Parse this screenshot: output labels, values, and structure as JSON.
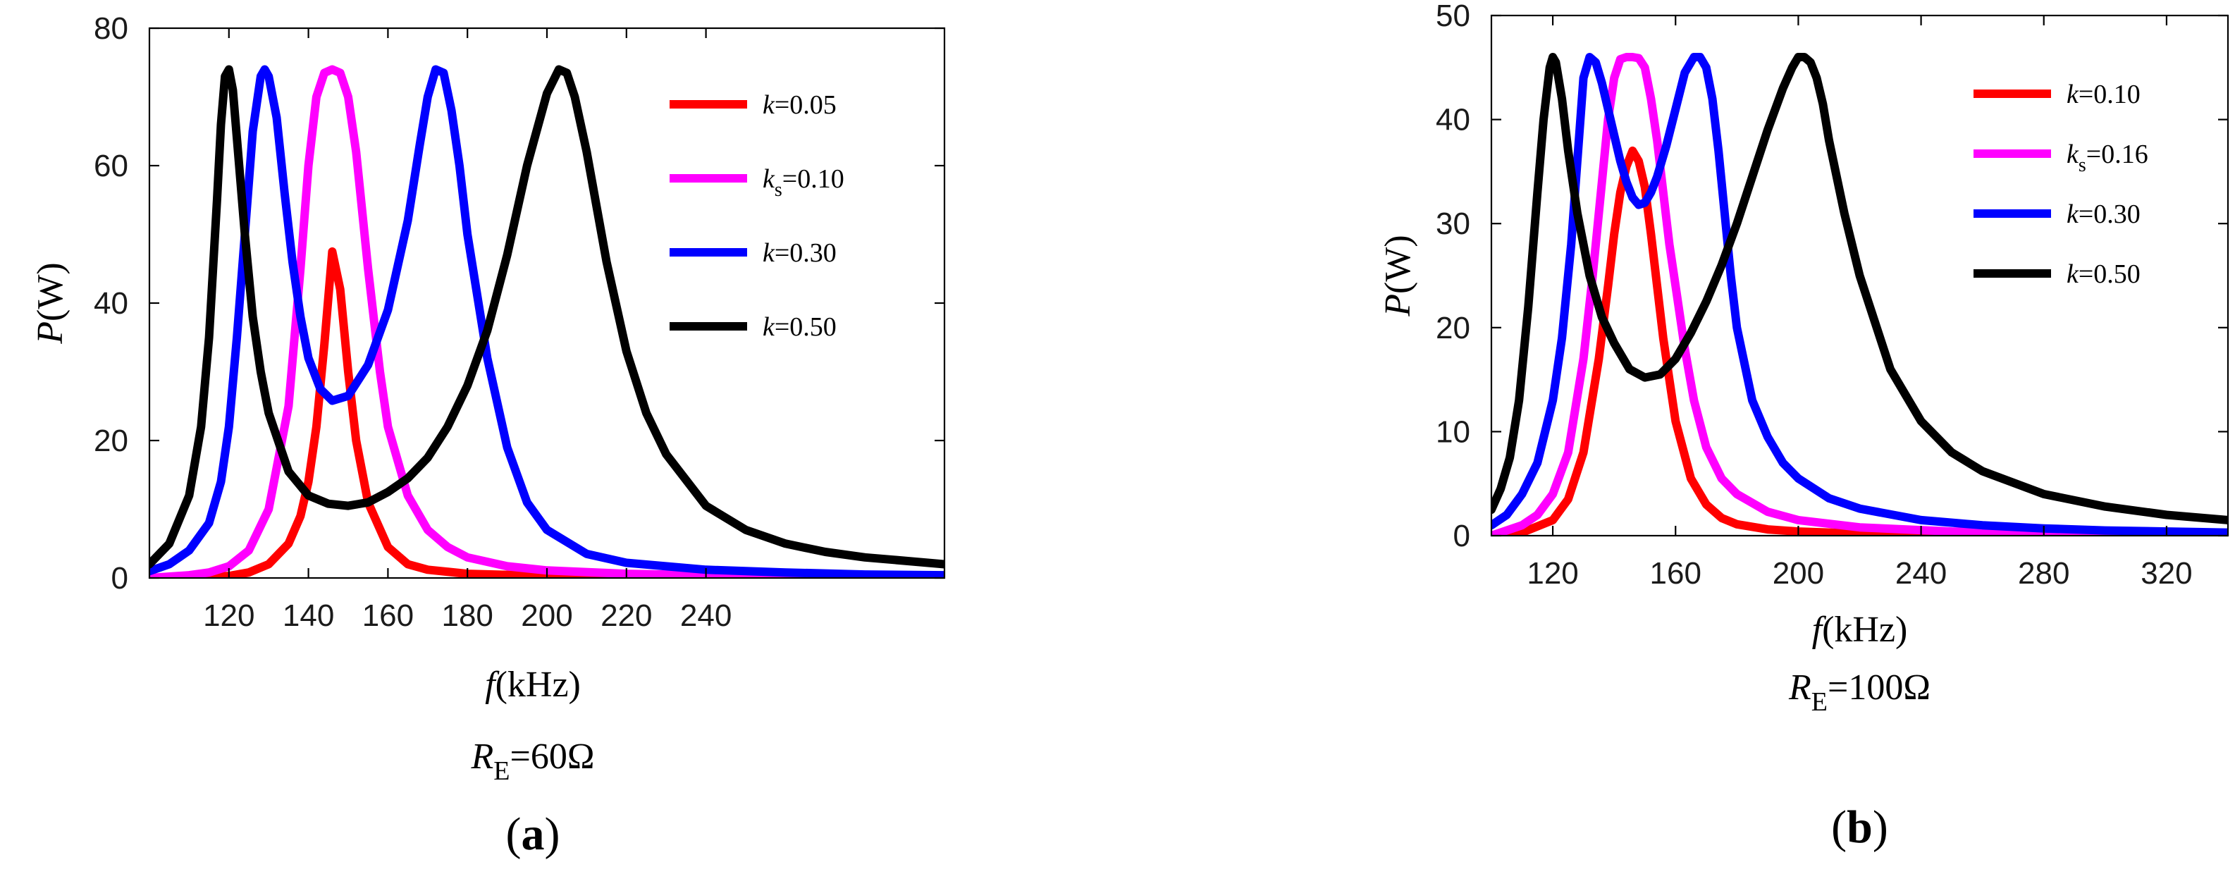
{
  "chart_data": [
    {
      "type": "line",
      "panel": "a",
      "xlabel": "f(kHz)",
      "ylabel": "P(W)",
      "condition": "R_E=60Ω",
      "xlim": [
        100,
        300
      ],
      "ylim": [
        0,
        80
      ],
      "xticks": [
        120,
        140,
        160,
        180,
        200,
        220,
        240
      ],
      "yticks": [
        0,
        20,
        40,
        60,
        80
      ],
      "legend_position": "top-right",
      "series": [
        {
          "name": "k=0.05",
          "symbol": "k",
          "sub": "",
          "value": "=0.05",
          "color": "#ff0000",
          "x": [
            100,
            110,
            120,
            125,
            130,
            135,
            138,
            140,
            142,
            144,
            146,
            148,
            150,
            152,
            155,
            160,
            165,
            170,
            180,
            200,
            250,
            300
          ],
          "y": [
            0,
            0.05,
            0.3,
            0.8,
            2,
            5,
            9,
            14,
            22,
            34,
            47.5,
            42,
            30,
            20,
            11,
            4.5,
            2,
            1.2,
            0.6,
            0.3,
            0.1,
            0.05
          ]
        },
        {
          "name": "ks=0.10",
          "symbol": "k",
          "sub": "s",
          "value": "=0.10",
          "color": "#ff00ff",
          "x": [
            100,
            110,
            115,
            120,
            125,
            130,
            135,
            138,
            140,
            142,
            144,
            146,
            148,
            150,
            152,
            155,
            158,
            160,
            165,
            170,
            175,
            180,
            190,
            200,
            220,
            250,
            300
          ],
          "y": [
            0,
            0.4,
            0.8,
            1.7,
            4,
            10,
            25,
            45,
            60,
            70,
            73.5,
            74,
            73.5,
            70,
            62,
            45,
            30,
            22,
            12,
            7,
            4.5,
            3,
            1.7,
            1.1,
            0.6,
            0.3,
            0.15
          ]
        },
        {
          "name": "k=0.30",
          "symbol": "k",
          "sub": "",
          "value": "=0.30",
          "color": "#0000ff",
          "x": [
            100,
            105,
            110,
            115,
            118,
            120,
            122,
            124,
            126,
            128,
            129,
            130,
            132,
            134,
            136,
            138,
            140,
            143,
            146,
            150,
            155,
            160,
            165,
            168,
            170,
            172,
            174,
            176,
            178,
            180,
            185,
            190,
            195,
            200,
            210,
            220,
            240,
            260,
            280,
            300
          ],
          "y": [
            1,
            2,
            4,
            8,
            14,
            22,
            35,
            50,
            65,
            73,
            74,
            73,
            67,
            56,
            46,
            38,
            32,
            27.5,
            25.8,
            26.5,
            31,
            39,
            52,
            63,
            70,
            74,
            73.5,
            68,
            60,
            50,
            32,
            19,
            11,
            7,
            3.5,
            2.2,
            1.2,
            0.8,
            0.5,
            0.4
          ]
        },
        {
          "name": "k=0.50",
          "symbol": "k",
          "sub": "",
          "value": "=0.50",
          "color": "#000000",
          "x": [
            100,
            105,
            110,
            113,
            115,
            117,
            118,
            119,
            120,
            121,
            122,
            124,
            126,
            128,
            130,
            135,
            140,
            145,
            150,
            155,
            160,
            165,
            170,
            175,
            180,
            185,
            190,
            195,
            200,
            203,
            205,
            207,
            210,
            215,
            220,
            225,
            230,
            240,
            250,
            260,
            270,
            280,
            290,
            300
          ],
          "y": [
            2,
            5,
            12,
            22,
            35,
            55,
            66,
            73,
            74,
            71,
            64,
            50,
            38,
            30,
            24,
            15.5,
            12,
            10.8,
            10.5,
            11,
            12.5,
            14.5,
            17.5,
            22,
            28,
            36,
            47,
            60,
            70.5,
            74,
            73.5,
            70,
            62,
            46,
            33,
            24,
            18,
            10.5,
            7,
            5,
            3.8,
            3,
            2.5,
            2
          ]
        }
      ]
    },
    {
      "type": "line",
      "panel": "b",
      "xlabel": "f(kHz)",
      "ylabel": "P(W)",
      "condition": "R_E=100Ω",
      "xlim": [
        100,
        340
      ],
      "ylim": [
        0,
        50
      ],
      "xticks": [
        120,
        160,
        200,
        240,
        280,
        320
      ],
      "yticks": [
        0,
        10,
        20,
        30,
        40,
        50
      ],
      "legend_position": "top-right",
      "series": [
        {
          "name": "k=0.10",
          "symbol": "k",
          "sub": "",
          "value": "=0.10",
          "color": "#ff0000",
          "x": [
            100,
            110,
            120,
            125,
            130,
            135,
            138,
            140,
            142,
            144,
            146,
            148,
            150,
            152,
            154,
            156,
            158,
            160,
            165,
            170,
            175,
            180,
            190,
            200,
            220,
            250,
            300,
            340
          ],
          "y": [
            0,
            0.3,
            1.5,
            3.5,
            8,
            17,
            24,
            29,
            33,
            35.5,
            37,
            36,
            33.5,
            29,
            24,
            19,
            15,
            11,
            5.5,
            3,
            1.7,
            1.1,
            0.6,
            0.4,
            0.2,
            0.1,
            0.05,
            0.03
          ]
        },
        {
          "name": "ks=0.16",
          "symbol": "k",
          "sub": "s",
          "value": "=0.16",
          "color": "#ff00ff",
          "x": [
            100,
            110,
            115,
            120,
            125,
            130,
            133,
            136,
            138,
            140,
            142,
            144,
            146,
            148,
            150,
            152,
            154,
            156,
            158,
            160,
            163,
            166,
            170,
            175,
            180,
            190,
            200,
            220,
            250,
            300,
            340
          ],
          "y": [
            0,
            1,
            2,
            4,
            8,
            17,
            25,
            34,
            40,
            44,
            45.8,
            46,
            46,
            45.9,
            45,
            42,
            38,
            33,
            28,
            24,
            18,
            13,
            8.5,
            5.5,
            4,
            2.3,
            1.5,
            0.8,
            0.4,
            0.2,
            0.1
          ]
        },
        {
          "name": "k=0.30",
          "symbol": "k",
          "sub": "",
          "value": "=0.30",
          "color": "#0000ff",
          "x": [
            100,
            105,
            110,
            115,
            120,
            123,
            126,
            128,
            130,
            132,
            134,
            136,
            138,
            140,
            142,
            144,
            146,
            148,
            150,
            152,
            154,
            157,
            160,
            163,
            166,
            168,
            170,
            172,
            174,
            176,
            178,
            180,
            185,
            190,
            195,
            200,
            210,
            220,
            240,
            260,
            280,
            300,
            340
          ],
          "y": [
            1,
            2,
            4,
            7,
            13,
            19,
            28,
            36,
            44,
            46,
            45.5,
            43.5,
            41,
            38.5,
            36,
            34,
            32.5,
            31.8,
            32,
            33,
            34.5,
            37.5,
            41,
            44.5,
            46,
            46,
            45,
            42,
            37,
            31,
            25,
            20,
            13,
            9.5,
            7,
            5.5,
            3.6,
            2.6,
            1.5,
            1,
            0.7,
            0.5,
            0.3
          ]
        },
        {
          "name": "k=0.50",
          "symbol": "k",
          "sub": "",
          "value": "=0.50",
          "color": "#000000",
          "x": [
            100,
            103,
            106,
            109,
            112,
            115,
            117,
            119,
            120,
            121,
            123,
            125,
            128,
            132,
            136,
            140,
            145,
            150,
            155,
            160,
            165,
            170,
            175,
            180,
            185,
            190,
            195,
            198,
            200,
            202,
            204,
            206,
            208,
            210,
            215,
            220,
            230,
            240,
            250,
            260,
            280,
            300,
            320,
            340
          ],
          "y": [
            2.5,
            4.5,
            7.5,
            13,
            22,
            33,
            40,
            45,
            46,
            45.5,
            42,
            37,
            31,
            25,
            21,
            18.5,
            16,
            15.2,
            15.5,
            17,
            19.5,
            22.5,
            26,
            30,
            34.5,
            39,
            43,
            45,
            46,
            46,
            45.5,
            44,
            41.5,
            38,
            31,
            25,
            16,
            11,
            8,
            6.2,
            4,
            2.8,
            2,
            1.5
          ]
        }
      ]
    }
  ],
  "panels": {
    "a": {
      "label": "a",
      "ylabel_italic": "P",
      "ylabel_rest": "(W)",
      "xlabel_italic": "f",
      "xlabel_rest": "(kHz)",
      "cond_italic": "R",
      "cond_sub": "E",
      "cond_rest": "=60Ω"
    },
    "b": {
      "label": "b",
      "ylabel_italic": "P",
      "ylabel_rest": "(W)",
      "xlabel_italic": "f",
      "xlabel_rest": "(kHz)",
      "cond_italic": "R",
      "cond_sub": "E",
      "cond_rest": "=100Ω"
    }
  }
}
